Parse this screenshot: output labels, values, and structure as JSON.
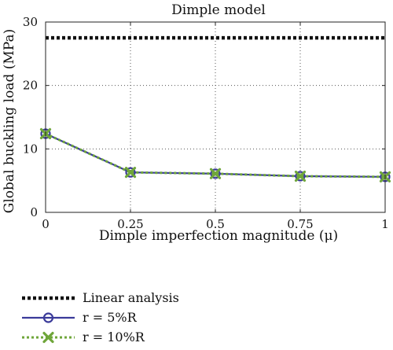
{
  "chart_data": {
    "type": "line",
    "title": "Dimple model",
    "xlabel": "Dimple imperfection magnitude (μ)",
    "ylabel": "Global buckling load (MPa)",
    "xlim": [
      0,
      1
    ],
    "ylim": [
      0,
      30
    ],
    "xticks": [
      0,
      0.25,
      0.5,
      0.75,
      1
    ],
    "xtick_labels": [
      "0",
      "0.25",
      "0.5",
      "0.75",
      "1"
    ],
    "yticks": [
      0,
      10,
      20,
      30
    ],
    "ytick_labels": [
      "0",
      "10",
      "20",
      "30"
    ],
    "grid": true,
    "legend_position": "below plot",
    "series": [
      {
        "name": "Linear analysis",
        "style": "dotted",
        "marker": "none",
        "color": "#111111",
        "x": [
          0,
          1
        ],
        "y": [
          27.5,
          27.5
        ]
      },
      {
        "name": "r = 5%R",
        "style": "solid",
        "marker": "circle",
        "color": "#3b3b9a",
        "x": [
          0,
          0.25,
          0.5,
          0.75,
          1
        ],
        "y": [
          12.4,
          6.3,
          6.1,
          5.7,
          5.6
        ]
      },
      {
        "name": "r = 10%R",
        "style": "dotted",
        "marker": "x",
        "color": "#6fa63a",
        "x": [
          0,
          0.25,
          0.5,
          0.75,
          1
        ],
        "y": [
          12.4,
          6.3,
          6.1,
          5.7,
          5.6
        ]
      }
    ]
  }
}
